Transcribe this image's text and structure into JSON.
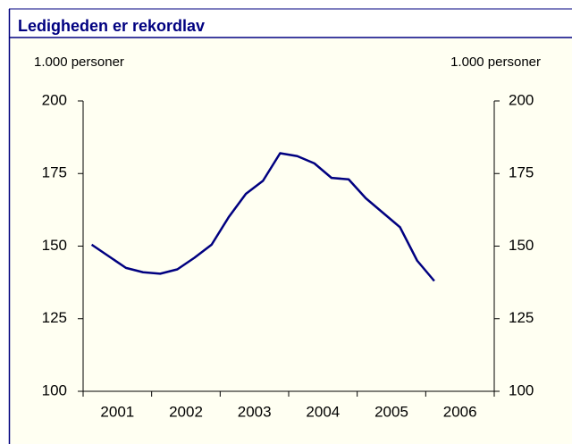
{
  "chart_data": {
    "type": "line",
    "title": "Ledigheden er rekordlav",
    "y_label": "1.000 personer",
    "y2_label": "1.000 personer",
    "categories": [
      "2001",
      "2002",
      "2003",
      "2004",
      "2005",
      "2006"
    ],
    "x": [
      2001.125,
      2001.375,
      2001.625,
      2001.875,
      2002.125,
      2002.375,
      2002.625,
      2002.875,
      2003.125,
      2003.375,
      2003.625,
      2003.875,
      2004.125,
      2004.375,
      2004.625,
      2004.875,
      2005.125,
      2005.375,
      2005.625,
      2005.875,
      2006.125
    ],
    "series": [
      {
        "color": "#000080",
        "values": [
          150.5,
          146.5,
          142.5,
          141,
          140.5,
          142,
          146,
          150.5,
          160,
          168,
          172.5,
          182,
          181,
          178.5,
          173.5,
          173,
          166.5,
          161.5,
          156.5,
          145,
          138
        ]
      }
    ],
    "xlim": [
      2001,
      2007
    ],
    "xticks": [
      2001,
      2002,
      2003,
      2004,
      2005,
      2006,
      2007
    ],
    "ylim": [
      100,
      200
    ],
    "yticks": [
      100,
      125,
      150,
      175,
      200
    ],
    "y2lim": [
      100,
      200
    ],
    "y2ticks": [
      100,
      125,
      150,
      175,
      200
    ]
  }
}
